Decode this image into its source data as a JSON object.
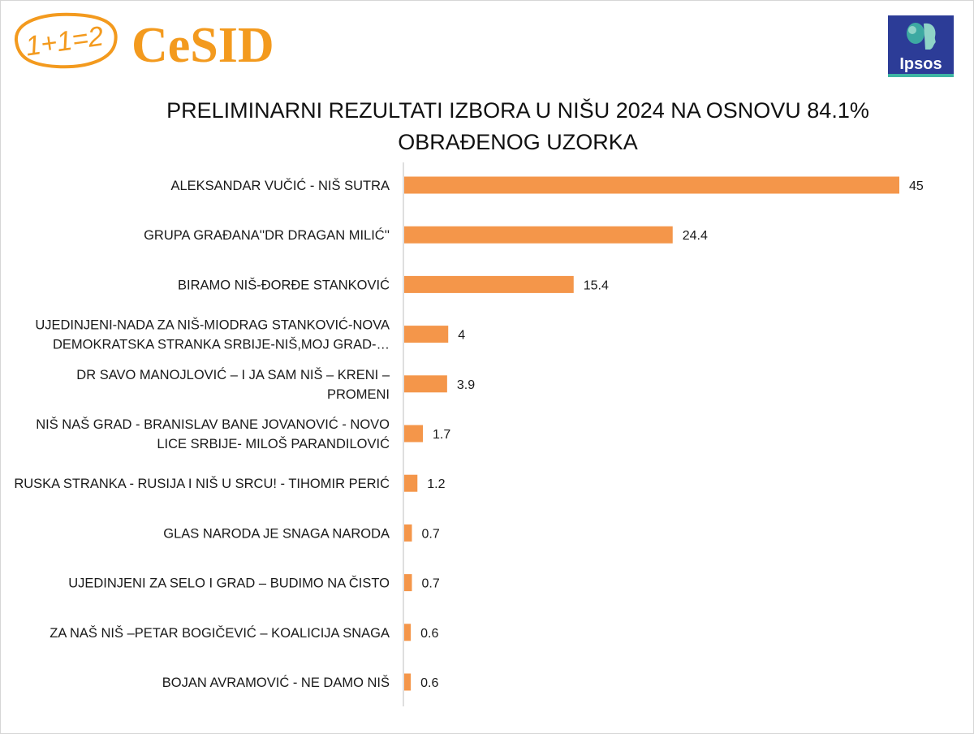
{
  "logos": {
    "cesid_badge": "1+1=2",
    "cesid_name": "CeSID",
    "ipsos_name": "Ipsos"
  },
  "colors": {
    "bar": "#f4964a",
    "brand_orange": "#f39a1e",
    "ipsos_blue": "#2c3c97"
  },
  "chart_data": {
    "type": "bar",
    "orientation": "horizontal",
    "title_lines": [
      "PRELIMINARNI REZULTATI IZBORA U NIŠU 2024 NA OSNOVU 84.1%",
      "OBRAĐENOG UZORKA"
    ],
    "categories": [
      [
        "ALEKSANDAR VUČIĆ - NIŠ SUTRA"
      ],
      [
        "GRUPA GRAĐANA''DR DRAGAN MILIĆ''"
      ],
      [
        "BIRAMO NIŠ-ĐORĐE STANKOVIĆ"
      ],
      [
        "UJEDINJENI-NADA ZA NIŠ-MIODRAG STANKOVIĆ-NOVA",
        "DEMOKRATSKA STRANKA SRBIJE-NIŠ,MOJ GRAD-…"
      ],
      [
        "DR SAVO MANOJLOVIĆ – I JA SAM NIŠ – KRENI –",
        "PROMENI"
      ],
      [
        "NIŠ NAŠ GRAD - BRANISLAV BANE JOVANOVIĆ - NOVO",
        "LICE SRBIJE- MILOŠ PARANDILOVIĆ"
      ],
      [
        "RUSKA STRANKA - RUSIJA I NIŠ U SRCU! - TIHOMIR PERIĆ"
      ],
      [
        "GLAS NARODA JE SNAGA NARODA"
      ],
      [
        "UJEDINJENI ZA SELO I GRAD – BUDIMO NA ČISTO"
      ],
      [
        "ZA NAŠ NIŠ –PETAR BOGIČEVIĆ – KOALICIJA SNAGA"
      ],
      [
        "BOJAN AVRAMOVIĆ - NE DAMO NIŠ"
      ]
    ],
    "values": [
      45,
      24.4,
      15.4,
      4,
      3.9,
      1.7,
      1.2,
      0.7,
      0.7,
      0.6,
      0.6
    ],
    "value_labels": [
      "45",
      "24.4",
      "15.4",
      "4",
      "3.9",
      "1.7",
      "1.2",
      "0.7",
      "0.7",
      "0.6",
      "0.6"
    ],
    "xlim": [
      0,
      45
    ],
    "grid": false,
    "legend": "none"
  }
}
